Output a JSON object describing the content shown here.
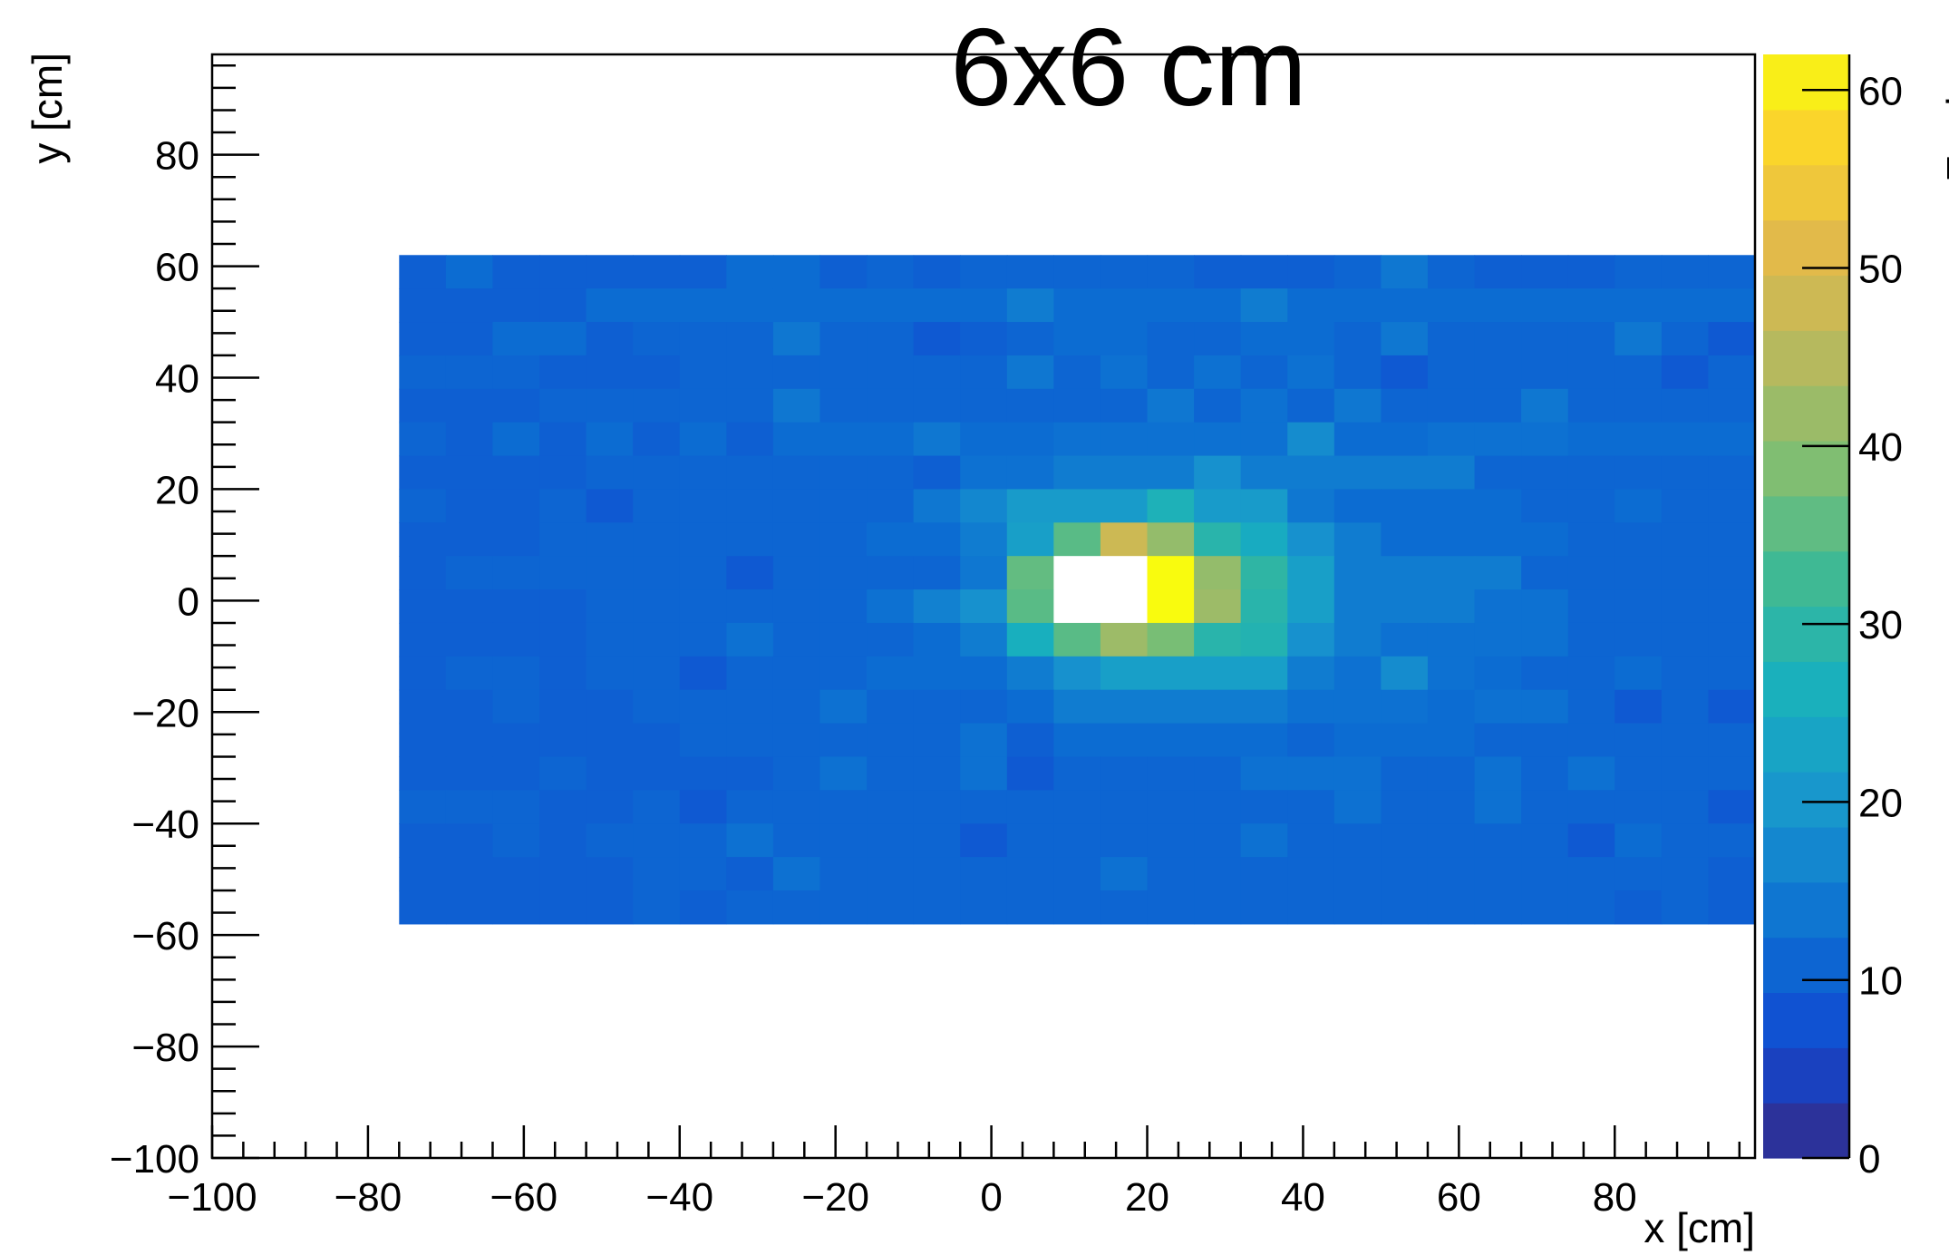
{
  "chart_data": {
    "type": "heatmap",
    "title": "6x6 cm",
    "xlabel": "x [cm]",
    "ylabel": "y [cm]",
    "zlabel": "Entries",
    "xlim": [
      -100,
      98
    ],
    "ylim": [
      -100,
      98
    ],
    "zlim": [
      0,
      62
    ],
    "x_ticks": [
      -100,
      -80,
      -60,
      -40,
      -20,
      0,
      20,
      40,
      60,
      80
    ],
    "x_tick_labels": [
      "−100",
      "−80",
      "−60",
      "−40",
      "−20",
      "0",
      "20",
      "40",
      "60",
      "80"
    ],
    "y_ticks": [
      -100,
      -80,
      -60,
      -40,
      -20,
      0,
      20,
      40,
      60,
      80
    ],
    "y_tick_labels": [
      "−100",
      "−80",
      "−60",
      "−40",
      "−20",
      "0",
      "20",
      "40",
      "60",
      "80"
    ],
    "z_ticks": [
      0,
      10,
      20,
      30,
      40,
      50,
      60
    ],
    "z_tick_labels": [
      "0",
      "10",
      "20",
      "30",
      "40",
      "50",
      "60"
    ],
    "bin_width": 6,
    "x_bin_start": -76,
    "y_bin_start": -58,
    "z_overflow": 65,
    "z_values_rows_top_to_bottom": [
      [
        10,
        12,
        10,
        10,
        10,
        10,
        10,
        12,
        12,
        10,
        11,
        10,
        11,
        11,
        11,
        11,
        11,
        10,
        10,
        10,
        11,
        14,
        11,
        10,
        10,
        10,
        11,
        11,
        11,
        11
      ],
      [
        10,
        10,
        10,
        10,
        12,
        12,
        12,
        12,
        12,
        12,
        12,
        12,
        12,
        15,
        12,
        12,
        12,
        12,
        15,
        12,
        12,
        12,
        12,
        12,
        12,
        12,
        12,
        12,
        12,
        9
      ],
      [
        10,
        10,
        12,
        12,
        10,
        11,
        11,
        11,
        14,
        11,
        11,
        9,
        10,
        11,
        12,
        12,
        11,
        11,
        12,
        12,
        11,
        14,
        11,
        11,
        11,
        11,
        14,
        11,
        9,
        11
      ],
      [
        11,
        11,
        11,
        10,
        10,
        10,
        11,
        11,
        11,
        11,
        11,
        11,
        11,
        14,
        11,
        13,
        11,
        13,
        11,
        13,
        11,
        9,
        11,
        11,
        11,
        11,
        11,
        9,
        11,
        11
      ],
      [
        10,
        10,
        10,
        11,
        11,
        11,
        11,
        11,
        14,
        11,
        11,
        11,
        11,
        11,
        11,
        11,
        14,
        11,
        13,
        11,
        14,
        11,
        11,
        11,
        14,
        11,
        11,
        11,
        11,
        11
      ],
      [
        11,
        10,
        12,
        10,
        12,
        10,
        12,
        10,
        12,
        12,
        12,
        14,
        12,
        12,
        13,
        13,
        13,
        13,
        13,
        18,
        12,
        12,
        13,
        13,
        13,
        12,
        12,
        12,
        12,
        12
      ],
      [
        10,
        10,
        10,
        10,
        11,
        11,
        11,
        11,
        11,
        11,
        11,
        10,
        13,
        13,
        15,
        15,
        15,
        19,
        15,
        15,
        15,
        15,
        15,
        11,
        11,
        11,
        11,
        11,
        11,
        11
      ],
      [
        11,
        10,
        10,
        11,
        9,
        11,
        11,
        11,
        11,
        11,
        11,
        14,
        17,
        21,
        21,
        21,
        27,
        21,
        21,
        14,
        12,
        12,
        12,
        12,
        11,
        11,
        12,
        11,
        11,
        11
      ],
      [
        10,
        10,
        10,
        11,
        11,
        11,
        11,
        11,
        11,
        11,
        12,
        12,
        15,
        22,
        35,
        48,
        41,
        29,
        25,
        19,
        15,
        12,
        12,
        12,
        12,
        11,
        11,
        11,
        11,
        11
      ],
      [
        10,
        11,
        11,
        11,
        11,
        11,
        11,
        9,
        11,
        11,
        11,
        11,
        14,
        36,
        65,
        65,
        62,
        41,
        30,
        22,
        15,
        15,
        15,
        15,
        11,
        11,
        11,
        11,
        11,
        11
      ],
      [
        10,
        10,
        10,
        10,
        11,
        11,
        11,
        11,
        11,
        11,
        13,
        16,
        19,
        35,
        65,
        65,
        62,
        42,
        29,
        22,
        15,
        15,
        15,
        13,
        13,
        11,
        11,
        11,
        11,
        11
      ],
      [
        10,
        10,
        10,
        10,
        11,
        11,
        11,
        13,
        11,
        11,
        11,
        12,
        15,
        26,
        35,
        42,
        38,
        29,
        28,
        19,
        15,
        13,
        13,
        13,
        13,
        11,
        11,
        11,
        11,
        11
      ],
      [
        10,
        11,
        11,
        10,
        11,
        11,
        9,
        11,
        11,
        11,
        12,
        12,
        12,
        15,
        19,
        22,
        22,
        22,
        22,
        15,
        13,
        18,
        13,
        12,
        11,
        11,
        12,
        11,
        11,
        11
      ],
      [
        10,
        10,
        11,
        10,
        10,
        11,
        11,
        11,
        11,
        13,
        11,
        11,
        11,
        12,
        15,
        15,
        15,
        15,
        15,
        13,
        13,
        13,
        12,
        13,
        13,
        11,
        9,
        11,
        9,
        11
      ],
      [
        10,
        10,
        10,
        10,
        10,
        10,
        11,
        11,
        11,
        11,
        11,
        11,
        13,
        10,
        12,
        12,
        12,
        12,
        12,
        11,
        12,
        12,
        12,
        11,
        11,
        11,
        11,
        11,
        11,
        11
      ],
      [
        10,
        10,
        10,
        11,
        10,
        10,
        10,
        10,
        11,
        13,
        11,
        11,
        13,
        9,
        11,
        11,
        11,
        11,
        13,
        13,
        13,
        11,
        11,
        13,
        11,
        13,
        11,
        11,
        11,
        11
      ],
      [
        11,
        11,
        11,
        10,
        10,
        11,
        9,
        11,
        11,
        11,
        11,
        11,
        11,
        11,
        11,
        11,
        11,
        11,
        11,
        11,
        13,
        11,
        11,
        13,
        11,
        11,
        11,
        11,
        9,
        11
      ],
      [
        10,
        10,
        11,
        10,
        11,
        11,
        11,
        13,
        11,
        11,
        11,
        11,
        9,
        11,
        11,
        11,
        11,
        11,
        13,
        11,
        11,
        11,
        11,
        11,
        11,
        9,
        12,
        11,
        11,
        11
      ],
      [
        10,
        10,
        10,
        10,
        10,
        11,
        11,
        10,
        13,
        11,
        11,
        11,
        11,
        11,
        11,
        13,
        11,
        11,
        11,
        11,
        11,
        11,
        11,
        11,
        11,
        11,
        11,
        11,
        10,
        11
      ],
      [
        10,
        10,
        10,
        10,
        10,
        11,
        10,
        11,
        11,
        11,
        11,
        11,
        11,
        11,
        11,
        11,
        11,
        11,
        11,
        11,
        11,
        11,
        11,
        11,
        11,
        11,
        10,
        11,
        10,
        10
      ]
    ]
  }
}
